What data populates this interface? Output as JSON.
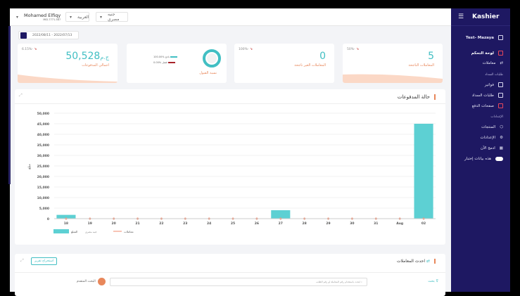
{
  "header": {
    "user_name": "Mohamed Elfiqy",
    "merchant_id": "MID-7771-587",
    "language": "العربية",
    "currency": "جنيه مصري"
  },
  "date_range": "2022/08/11 - 2022/07/13",
  "cards": [
    {
      "value": "5",
      "label": "المعاملات الناجحة",
      "change": "50%-"
    },
    {
      "value": "0",
      "label": "المعاملات الغير ناجحة",
      "change": "100%-"
    },
    {
      "label": "نسبة القبول",
      "legend": [
        {
          "text": "100.00% ناجح",
          "color": "#42bfc3"
        },
        {
          "text": "0.00% فشل",
          "color": "#a8232b"
        }
      ],
      "acceptance": 1.0
    },
    {
      "value": "50,528",
      "currency": "ج.م",
      "label": "اجمالي المدفوعات",
      "change": "6.15%-"
    }
  ],
  "chart_section": {
    "title": "حالة المدفوعات"
  },
  "chart_data": {
    "type": "bar",
    "ylabel": "مبلغ",
    "ylim": [
      0,
      50000
    ],
    "yticks": [
      "0",
      "5,000",
      "10,000",
      "15,000",
      "20,000",
      "25,000",
      "30,000",
      "35,000",
      "40,000",
      "45,000",
      "50,000"
    ],
    "categories": [
      "18",
      "19",
      "20",
      "21",
      "22",
      "23",
      "24",
      "25",
      "26",
      "27",
      "28",
      "29",
      "30",
      "31",
      "Aug",
      "02"
    ],
    "series": [
      {
        "name": "المبلغ",
        "values": [
          1800,
          0,
          0,
          0,
          0,
          0,
          0,
          0,
          0,
          4000,
          0,
          0,
          0,
          0,
          0,
          45000
        ],
        "color": "#5dd0d3"
      },
      {
        "name": "معاملات",
        "type": "line",
        "values": [
          1,
          0,
          0,
          0,
          0,
          0,
          0,
          0,
          0,
          1,
          0,
          0,
          0,
          0,
          0,
          3
        ],
        "color": "#f08a6b"
      }
    ],
    "legend": [
      "المبلغ",
      "جنيه مصري",
      "معاملات"
    ],
    "legend_position": "bottom-left",
    "grid": true
  },
  "transactions": {
    "title": "احدث المعاملات",
    "export_label": "استخراج تقرير",
    "filter_label": "بحث",
    "search_placeholder": "ابحث باستخدام رقم المعاملة او رقم الطلب",
    "advanced_search": "البحث المتقدم"
  },
  "sidebar": {
    "brand": "Kashier",
    "account": "Test- Mazaya",
    "items": [
      {
        "label": "لوحة التحكم",
        "active": true
      },
      {
        "label": "معاملات"
      }
    ],
    "section1": "طلبات السداد",
    "items2": [
      {
        "label": "فواتير"
      },
      {
        "label": "طلبات السداد"
      },
      {
        "label": "صفحات الدفع"
      }
    ],
    "section2": "الإعدادات",
    "items3": [
      {
        "label": "المنتجات"
      },
      {
        "label": "الإعدادات"
      },
      {
        "label": "ادمج الآن"
      },
      {
        "label": "هذه بيانات إختبار",
        "toggle": true
      }
    ]
  }
}
